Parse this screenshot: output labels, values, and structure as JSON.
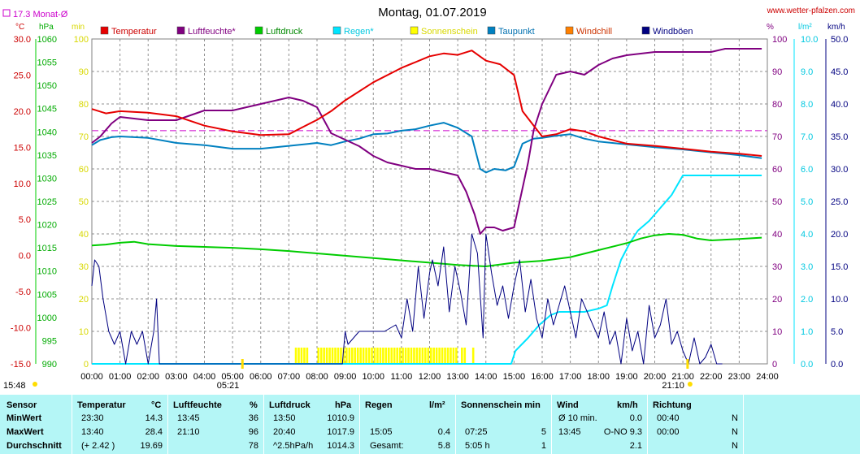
{
  "chart_data": {
    "type": "line",
    "title": "Montag, 01.07.2019",
    "source": "www.wetter-pfalzen.com",
    "month_avg_label": "17.3 Monat-Ø",
    "axis_headers": {
      "temp": "°C",
      "pressure": "hPa",
      "min": "min",
      "percent": "%",
      "rain": "l/m²",
      "wind": "km/h"
    },
    "x_ticks": [
      "00:00",
      "01:00",
      "02:00",
      "03:00",
      "04:00",
      "05:00",
      "06:00",
      "07:00",
      "08:00",
      "09:00",
      "10:00",
      "11:00",
      "12:00",
      "13:00",
      "14:00",
      "15:00",
      "16:00",
      "17:00",
      "18:00",
      "19:00",
      "20:00",
      "21:00",
      "22:00",
      "23:00",
      "24:00"
    ],
    "sunrise": "05:21",
    "sunset": "21:10",
    "sunshine_start": "15:48",
    "axes": {
      "temp": {
        "min": -15,
        "max": 30,
        "ticks": [
          "30.0",
          "25.0",
          "20.0",
          "15.0",
          "10.0",
          "5.0",
          "0.0",
          "-5.0",
          "-10.0",
          "-15.0"
        ]
      },
      "pressure": {
        "min": 990,
        "max": 1060,
        "ticks": [
          "1060",
          "1055",
          "1050",
          "1045",
          "1040",
          "1035",
          "1030",
          "1025",
          "1020",
          "1015",
          "1010",
          "1005",
          "1000",
          "995",
          "990"
        ]
      },
      "minutes": {
        "min": 0,
        "max": 100,
        "ticks": [
          "100",
          "90",
          "80",
          "70",
          "60",
          "50",
          "40",
          "30",
          "20",
          "10",
          "0"
        ]
      },
      "humidity": {
        "min": 0,
        "max": 100,
        "ticks": [
          "100",
          "90",
          "80",
          "70",
          "60",
          "50",
          "40",
          "30",
          "20",
          "10",
          "0"
        ]
      },
      "rain": {
        "min": 0,
        "max": 10,
        "ticks": [
          "10.0",
          "9.0",
          "8.0",
          "7.0",
          "6.0",
          "5.0",
          "4.0",
          "3.0",
          "2.0",
          "1.0",
          "0.0"
        ]
      },
      "wind": {
        "min": 0,
        "max": 50,
        "ticks": [
          "50.0",
          "45.0",
          "40.0",
          "35.0",
          "30.0",
          "25.0",
          "20.0",
          "15.0",
          "10.0",
          "5.0",
          "0.0"
        ]
      }
    },
    "legend": [
      {
        "label": "Temperatur",
        "color": "#e60000",
        "text_color": "#cc0000"
      },
      {
        "label": "Luftfeuchte*",
        "color": "#800080",
        "text_color": "#800080"
      },
      {
        "label": "Luftdruck",
        "color": "#00cc00",
        "text_color": "#008800"
      },
      {
        "label": "Regen*",
        "color": "#00e5ff",
        "text_color": "#00c8e0"
      },
      {
        "label": "Sonnenschein",
        "color": "#ffff00",
        "text_color": "#d8d800"
      },
      {
        "label": "Taupunkt",
        "color": "#0080c0",
        "text_color": "#0070b0"
      },
      {
        "label": "Windchill",
        "color": "#ff8000",
        "text_color": "#cc3300"
      },
      {
        "label": "Windböen",
        "color": "#000080",
        "text_color": "#000080"
      }
    ],
    "month_avg_temp": 17.3,
    "series": [
      {
        "name": "Temperatur",
        "axis": "temp",
        "color": "#e60000",
        "x": [
          0,
          0.5,
          1,
          2,
          3,
          4,
          5,
          6,
          7,
          7.5,
          8,
          8.5,
          9,
          10,
          11,
          12,
          12.5,
          13,
          13.5,
          14,
          14.5,
          15,
          15.3,
          15.7,
          16,
          16.5,
          17,
          17.5,
          18,
          19,
          20,
          21,
          22,
          23,
          23.8
        ],
        "y": [
          20.3,
          19.7,
          20.0,
          19.8,
          19.3,
          18.0,
          17.2,
          16.7,
          16.8,
          17.8,
          18.8,
          20.0,
          21.5,
          24.0,
          26.0,
          27.6,
          28.0,
          27.8,
          28.4,
          27.0,
          26.5,
          25.0,
          20.0,
          18.0,
          16.5,
          16.8,
          17.5,
          17.2,
          16.5,
          15.5,
          15.2,
          14.8,
          14.4,
          14.1,
          13.8
        ]
      },
      {
        "name": "Luftfeuchte*",
        "axis": "humidity",
        "color": "#800080",
        "x": [
          0,
          0.3,
          0.7,
          1,
          2,
          3,
          4,
          5,
          6,
          6.5,
          7,
          7.5,
          8,
          8.5,
          9,
          9.5,
          10,
          10.5,
          11,
          11.5,
          12,
          12.5,
          13,
          13.3,
          13.6,
          13.8,
          14,
          14.3,
          14.6,
          15,
          15.2,
          15.5,
          15.7,
          16,
          16.5,
          17,
          17.5,
          18,
          18.5,
          19,
          20,
          21,
          22,
          22.5,
          23,
          23.8
        ],
        "y": [
          68,
          70,
          74,
          76,
          75,
          75,
          78,
          78,
          80,
          81,
          82,
          81,
          79,
          71,
          69,
          67,
          64,
          62,
          61,
          60,
          60,
          59,
          58,
          53,
          46,
          40,
          42,
          42,
          41,
          42,
          50,
          62,
          72,
          80,
          89,
          90,
          89,
          92,
          94,
          95,
          96,
          96,
          96,
          97,
          97,
          97
        ]
      },
      {
        "name": "Luftdruck",
        "axis": "pressure",
        "color": "#00cc00",
        "x": [
          0,
          0.5,
          1,
          1.5,
          2,
          3,
          4,
          5,
          6,
          7,
          8,
          9,
          10,
          11,
          12,
          13,
          14,
          15,
          16,
          17,
          18,
          19,
          19.5,
          20,
          20.5,
          21,
          21.5,
          22,
          23,
          23.8
        ],
        "y": [
          1015.5,
          1015.7,
          1016.1,
          1016.3,
          1015.8,
          1015.4,
          1015.2,
          1015.0,
          1014.7,
          1014.3,
          1013.8,
          1013.3,
          1012.8,
          1012.3,
          1011.8,
          1011.3,
          1011.0,
          1011.8,
          1012.2,
          1013.0,
          1014.5,
          1016.0,
          1017.0,
          1017.7,
          1018.0,
          1017.8,
          1017.0,
          1016.6,
          1016.9,
          1017.2
        ]
      },
      {
        "name": "Regen*",
        "axis": "rain",
        "color": "#00e5ff",
        "x": [
          0,
          14.9,
          15.05,
          15.5,
          15.9,
          16.3,
          16.6,
          17,
          17.5,
          18,
          18.3,
          18.5,
          18.8,
          19.1,
          19.4,
          19.8,
          20.2,
          20.6,
          21,
          21.3,
          21.6,
          22,
          22.5,
          23,
          23.8
        ],
        "y": [
          0,
          0,
          0.4,
          0.8,
          1.2,
          1.5,
          1.6,
          1.6,
          1.6,
          1.7,
          1.8,
          2.4,
          3.2,
          3.7,
          4.1,
          4.4,
          4.8,
          5.2,
          5.8,
          5.8,
          5.8,
          5.8,
          5.8,
          5.8,
          5.8
        ]
      },
      {
        "name": "Taupunkt",
        "axis": "temp",
        "color": "#0080c0",
        "x": [
          0,
          0.3,
          0.7,
          1,
          2,
          3,
          4,
          5,
          6,
          7,
          8,
          8.5,
          9,
          9.5,
          10,
          10.5,
          11,
          11.5,
          12,
          12.5,
          13,
          13.5,
          13.8,
          14,
          14.3,
          14.7,
          15,
          15.3,
          15.7,
          16,
          16.5,
          17,
          17.5,
          18,
          19,
          20,
          21,
          22,
          23,
          23.8
        ],
        "y": [
          15.3,
          16.0,
          16.4,
          16.5,
          16.3,
          15.6,
          15.3,
          14.8,
          14.8,
          15.2,
          15.6,
          15.3,
          15.8,
          16.2,
          16.8,
          16.9,
          17.3,
          17.5,
          18.0,
          18.4,
          17.7,
          16.5,
          12.0,
          11.5,
          12.0,
          11.8,
          12.3,
          15.5,
          16.2,
          16.3,
          16.6,
          16.8,
          16.2,
          15.8,
          15.4,
          15.0,
          14.7,
          14.3,
          13.9,
          13.5
        ]
      },
      {
        "name": "Windböen",
        "axis": "wind",
        "color": "#000080",
        "x": [
          0,
          0.1,
          0.25,
          0.4,
          0.6,
          0.8,
          1,
          1.2,
          1.4,
          1.6,
          1.8,
          2,
          2.2,
          2.3,
          2.4,
          2.6,
          8.9,
          9,
          9.1,
          9.5,
          10,
          10.4,
          10.8,
          11,
          11.2,
          11.4,
          11.6,
          11.8,
          12,
          12.1,
          12.3,
          12.5,
          12.7,
          12.9,
          13.1,
          13.3,
          13.5,
          13.7,
          13.9,
          14,
          14.2,
          14.4,
          14.6,
          14.8,
          15,
          15.2,
          15.4,
          15.6,
          15.8,
          16,
          16.2,
          16.4,
          16.6,
          16.8,
          17,
          17.2,
          17.4,
          17.6,
          17.8,
          18,
          18.2,
          18.4,
          18.6,
          18.8,
          19,
          19.2,
          19.4,
          19.6,
          19.8,
          20,
          20.2,
          20.4,
          20.6,
          20.8,
          21,
          21.2,
          21.4,
          21.6,
          21.8,
          22,
          22.2,
          22.4
        ],
        "y": [
          12,
          16,
          15,
          10,
          5,
          3,
          5,
          0,
          5,
          3,
          5,
          0,
          5,
          10,
          0,
          0,
          0,
          5,
          3,
          5,
          5,
          5,
          6,
          4,
          10,
          5,
          15,
          7,
          14,
          16,
          12,
          18,
          8,
          15,
          11,
          6,
          20,
          17,
          4,
          20,
          14,
          9,
          12,
          7,
          12,
          16,
          8,
          13,
          7,
          4,
          10,
          6,
          9,
          12,
          8,
          4,
          10,
          8,
          6,
          4,
          8,
          3,
          5,
          0,
          7,
          2,
          5,
          0,
          9,
          4,
          6,
          10,
          3,
          5,
          2,
          0,
          4,
          0,
          1,
          3,
          0,
          0
        ]
      }
    ],
    "sunshine_minutes": {
      "x": [
        7.25,
        7.35,
        7.45,
        7.55,
        7.65,
        8.05,
        8.15,
        8.25,
        8.35,
        8.45,
        8.55,
        8.65,
        8.75,
        8.85,
        8.95,
        9.05,
        9.15,
        9.25,
        9.35,
        9.45,
        9.55,
        9.65,
        9.75,
        9.85,
        9.95,
        10.05,
        10.15,
        10.25,
        10.35,
        10.45,
        10.55,
        10.65,
        10.75,
        10.85,
        10.95,
        11.05,
        11.15,
        11.25,
        11.35,
        11.45,
        11.55,
        11.65,
        11.75,
        11.85,
        11.95,
        12.05,
        12.15,
        12.25,
        12.35,
        12.45,
        12.55,
        12.65,
        12.75,
        12.85,
        12.95,
        13.15,
        13.25,
        13.55
      ],
      "y": [
        5,
        5,
        5,
        5,
        5,
        5,
        5,
        5,
        5,
        5,
        5,
        5,
        5,
        5,
        5,
        5,
        5,
        5,
        5,
        5,
        5,
        5,
        5,
        5,
        5,
        5,
        5,
        5,
        5,
        5,
        5,
        5,
        5,
        5,
        5,
        5,
        5,
        5,
        5,
        5,
        5,
        5,
        5,
        5,
        5,
        5,
        5,
        5,
        5,
        5,
        5,
        5,
        5,
        5,
        5,
        5,
        5,
        5
      ]
    }
  },
  "footer": {
    "cols": {
      "sensor": "Sensor",
      "temperature": "Temperatur",
      "temp_unit": "°C",
      "humidity": "Luftfeuchte",
      "hum_unit": "%",
      "pressure": "Luftdruck",
      "pres_unit": "hPa",
      "rain": "Regen",
      "rain_unit": "l/m²",
      "sunshine": "Sonnenschein min",
      "wind": "Wind",
      "wind_unit": "km/h",
      "direction": "Richtung"
    },
    "rows": [
      {
        "label": "MinWert",
        "temp_time": "23:30",
        "temp_val": "14.3",
        "hum_time": "13:45",
        "hum_val": "36",
        "pres_time": "13:50",
        "pres_val": "1010.9",
        "rain_time": "",
        "rain_val": "",
        "sun_time": "",
        "sun_val": "",
        "wind_time": "Ø 10 min.",
        "wind_val": "0.0",
        "dir_time": "00:40",
        "dir_val": "N"
      },
      {
        "label": "MaxWert",
        "temp_time": "13:40",
        "temp_val": "28.4",
        "hum_time": "21:10",
        "hum_val": "96",
        "pres_time": "20:40",
        "pres_val": "1017.9",
        "rain_time": "15:05",
        "rain_val": "0.4",
        "sun_time": "07:25",
        "sun_val": "5",
        "wind_time": "13:45",
        "wind_val": "O-NO 9.3",
        "dir_time": "00:00",
        "dir_val": "N"
      },
      {
        "label": "Durchschnitt",
        "temp_time": "(+ 2.42 )",
        "temp_val": "19.69",
        "hum_time": "",
        "hum_val": "78",
        "pres_time": "^2.5hPa/h",
        "pres_val": "1014.3",
        "rain_time": "Gesamt:",
        "rain_val": "5.8",
        "sun_time": "5:05 h",
        "sun_val": "1",
        "wind_time": "",
        "wind_val": "2.1",
        "dir_time": "",
        "dir_val": "N"
      }
    ]
  }
}
